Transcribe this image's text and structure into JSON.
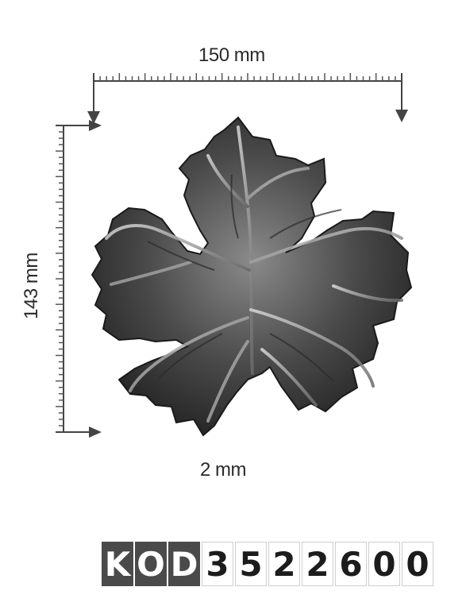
{
  "dimensions": {
    "width": "150 mm",
    "height": "143 mm",
    "thickness": "2 mm"
  },
  "product_code": {
    "prefix": [
      "K",
      "O",
      "D"
    ],
    "digits": [
      "3",
      "5",
      "2",
      "2",
      "6",
      "0",
      "0"
    ]
  },
  "image": {
    "subject": "leaf-icon"
  }
}
